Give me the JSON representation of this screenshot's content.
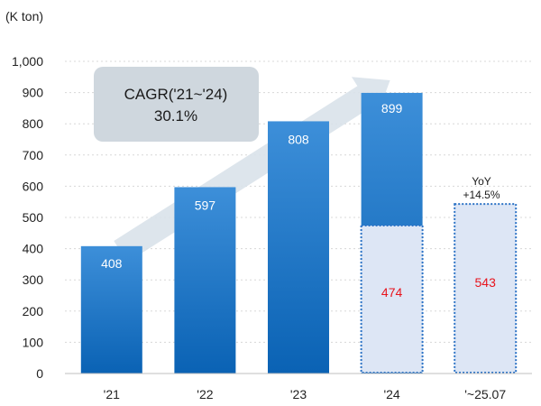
{
  "unit_label": "(K ton)",
  "cagr": {
    "title": "CAGR('21~'24)",
    "value": "30.1%"
  },
  "yoy": {
    "line1": "YoY",
    "line2": "+14.5%"
  },
  "colors": {
    "bar_top": "#3d8fd9",
    "bar_bottom": "#0a62b4",
    "partial_fill": "#dde6f5",
    "partial_border": "#2e74c6",
    "partial_label": "#e8141d",
    "arrow": "#d9e2ea",
    "cagr_box": "#cfd7de"
  },
  "chart_data": {
    "type": "bar",
    "categories": [
      "'21",
      "'22",
      "'23",
      "'24",
      "'~25.07"
    ],
    "ylim": [
      0,
      1000
    ],
    "yticks": [
      0,
      100,
      200,
      300,
      400,
      500,
      600,
      700,
      800,
      900,
      1000
    ],
    "ytick_labels": [
      "0",
      "100",
      "200",
      "300",
      "400",
      "500",
      "600",
      "700",
      "800",
      "900",
      "1,000"
    ],
    "series": [
      {
        "values": [
          408,
          597,
          808,
          899,
          null
        ],
        "labels": [
          "408",
          "597",
          "808",
          "899",
          ""
        ]
      },
      {
        "values": [
          null,
          null,
          null,
          474,
          543
        ],
        "labels": [
          "",
          "",
          "",
          "474",
          "543"
        ]
      }
    ],
    "annotations": [
      "CAGR('21~'24) 30.1%",
      "YoY +14.5%"
    ]
  }
}
